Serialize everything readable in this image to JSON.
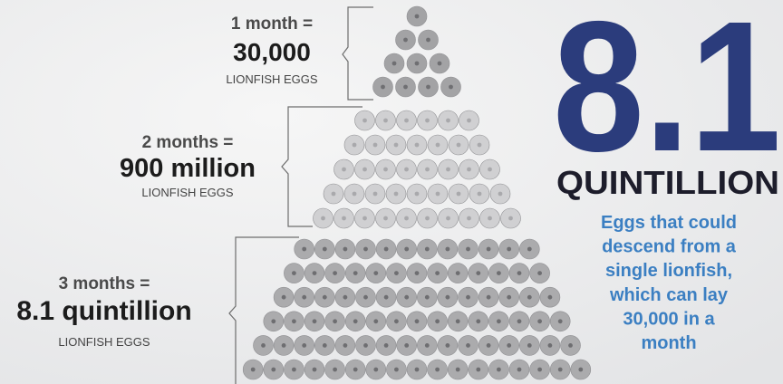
{
  "groups": [
    {
      "period": "1 month =",
      "amount": "30,000",
      "unit": "LIONFISH EGGS"
    },
    {
      "period": "2 months =",
      "amount": "900 million",
      "unit": "LIONFISH EGGS"
    },
    {
      "period": "3 months =",
      "amount": "8.1 quintillion",
      "unit": "LIONFISH EGGS"
    }
  ],
  "headline": {
    "number": "8.1",
    "word": "QUINTILLION",
    "description": [
      "Eggs that could",
      "descend from a",
      "single lionfish,",
      "which can lay",
      "30,000 in a",
      "month"
    ]
  }
}
